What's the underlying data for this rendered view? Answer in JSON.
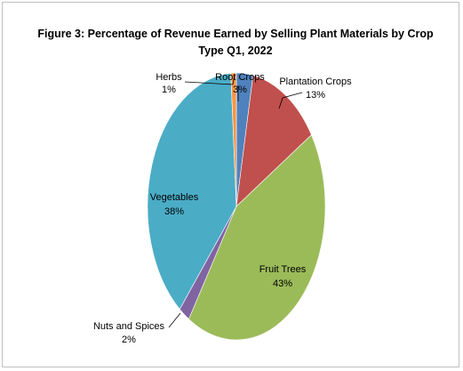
{
  "chart_data": {
    "type": "pie",
    "title_line1": "Figure 3: Percentage of Revenue Earned by Selling Plant Materials by Crop",
    "title_line2": "Type Q1, 2022",
    "slices": [
      {
        "name": "Root Crops",
        "value": 3,
        "pct_label": "3%",
        "color": "#4f81bd"
      },
      {
        "name": "Plantation Crops",
        "value": 13,
        "pct_label": "13%",
        "color": "#c0504d"
      },
      {
        "name": "Fruit Trees",
        "value": 43,
        "pct_label": "43%",
        "color": "#9bbb59"
      },
      {
        "name": "Nuts and Spices",
        "value": 2,
        "pct_label": "2%",
        "color": "#8064a2"
      },
      {
        "name": "Vegetables",
        "value": 38,
        "pct_label": "38%",
        "color": "#4bacc6"
      },
      {
        "name": "Herbs",
        "value": 1,
        "pct_label": "1%",
        "color": "#f79646"
      }
    ]
  }
}
